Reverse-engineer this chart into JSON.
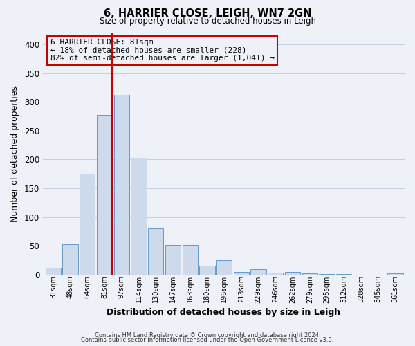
{
  "title": "6, HARRIER CLOSE, LEIGH, WN7 2GN",
  "subtitle": "Size of property relative to detached houses in Leigh",
  "xlabel": "Distribution of detached houses by size in Leigh",
  "ylabel": "Number of detached properties",
  "bar_labels": [
    "31sqm",
    "48sqm",
    "64sqm",
    "81sqm",
    "97sqm",
    "114sqm",
    "130sqm",
    "147sqm",
    "163sqm",
    "180sqm",
    "196sqm",
    "213sqm",
    "229sqm",
    "246sqm",
    "262sqm",
    "279sqm",
    "295sqm",
    "312sqm",
    "328sqm",
    "345sqm",
    "361sqm"
  ],
  "bar_values": [
    12,
    53,
    175,
    277,
    312,
    203,
    80,
    52,
    51,
    15,
    25,
    5,
    9,
    3,
    5,
    2,
    1,
    1,
    0,
    0,
    2
  ],
  "bar_color": "#cddaeb",
  "bar_edgecolor": "#6699cc",
  "ylim": [
    0,
    420
  ],
  "yticks": [
    0,
    50,
    100,
    150,
    200,
    250,
    300,
    350,
    400
  ],
  "vline_color": "#cc0000",
  "annotation_line1": "6 HARRIER CLOSE: 81sqm",
  "annotation_line2": "← 18% of detached houses are smaller (228)",
  "annotation_line3": "82% of semi-detached houses are larger (1,041) →",
  "annotation_box_edgecolor": "#cc0000",
  "footer1": "Contains HM Land Registry data © Crown copyright and database right 2024.",
  "footer2": "Contains public sector information licensed under the Open Government Licence v3.0.",
  "background_color": "#eef2f8"
}
